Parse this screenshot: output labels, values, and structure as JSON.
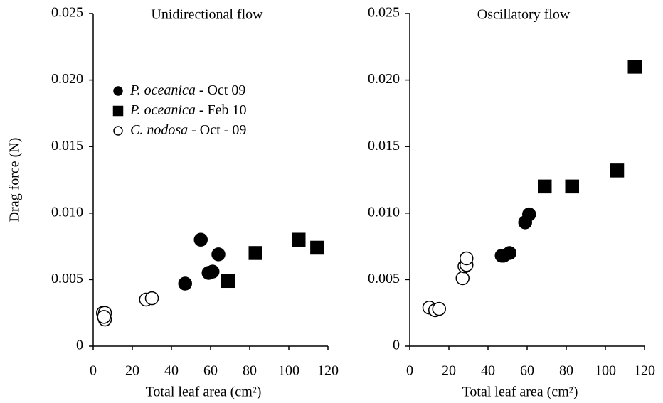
{
  "chart_data": [
    {
      "type": "scatter",
      "title": "Unidirectional flow",
      "ylabel": "Drag force (N)",
      "xlabel": "Total leaf area (cm²)",
      "xlim": [
        0,
        120
      ],
      "xticks": [
        0,
        20,
        40,
        60,
        80,
        100,
        120
      ],
      "ylim": [
        0,
        0.025
      ],
      "yticks": [
        0,
        {
          "value": 0.005,
          "label": "0.005"
        },
        {
          "value": 0.01,
          "label": "0.010"
        },
        {
          "value": 0.015,
          "label": "0.015"
        },
        {
          "value": 0.02,
          "label": "0.020"
        },
        {
          "value": 0.025,
          "label": "0.025"
        }
      ],
      "legend": "upper left",
      "series": [
        {
          "name": "P. oceanica - Oct 09",
          "color": "#000000",
          "marker": "circle",
          "filled": true,
          "x": [
            47,
            55,
            59,
            61,
            64
          ],
          "values": [
            0.0047,
            0.008,
            0.0055,
            0.0056,
            0.0069
          ]
        },
        {
          "name": "P. oceanica - Feb 10",
          "color": "#000000",
          "marker": "square",
          "filled": true,
          "x": [
            69,
            83,
            105,
            114.5
          ],
          "values": [
            0.0049,
            0.007,
            0.008,
            0.0074
          ]
        },
        {
          "name": "C. nodosa - Oct - 09",
          "color": "#000000",
          "marker": "circle",
          "filled": false,
          "x": [
            5,
            6,
            6,
            5.5,
            27,
            30
          ],
          "values": [
            0.0025,
            0.0025,
            0.002,
            0.0022,
            0.0035,
            0.0036
          ]
        }
      ]
    },
    {
      "type": "scatter",
      "title": "Oscillatory flow",
      "xlabel": "Total leaf area (cm²)",
      "xlim": [
        0,
        120
      ],
      "xticks": [
        0,
        20,
        40,
        60,
        80,
        100,
        120
      ],
      "ylim": [
        0,
        0.025
      ],
      "yticks": [
        0,
        {
          "value": 0.005,
          "label": "0.005"
        },
        {
          "value": 0.01,
          "label": "0.010"
        },
        {
          "value": 0.015,
          "label": "0.015"
        },
        {
          "value": 0.02,
          "label": "0.020"
        },
        {
          "value": 0.025,
          "label": "0.025"
        }
      ],
      "series": [
        {
          "color": "#000000",
          "marker": "circle",
          "filled": true,
          "x": [
            47,
            48,
            51,
            59,
            61
          ],
          "values": [
            0.0068,
            0.0068,
            0.007,
            0.0093,
            0.0099
          ]
        },
        {
          "color": "#000000",
          "marker": "square",
          "filled": true,
          "x": [
            69,
            83,
            106,
            115
          ],
          "values": [
            0.012,
            0.012,
            0.0132,
            0.021
          ]
        },
        {
          "color": "#000000",
          "marker": "circle",
          "filled": false,
          "x": [
            10,
            13,
            15,
            27,
            28,
            29,
            29
          ],
          "values": [
            0.0029,
            0.0027,
            0.0028,
            0.0051,
            0.006,
            0.0061,
            0.0066
          ]
        }
      ]
    }
  ]
}
